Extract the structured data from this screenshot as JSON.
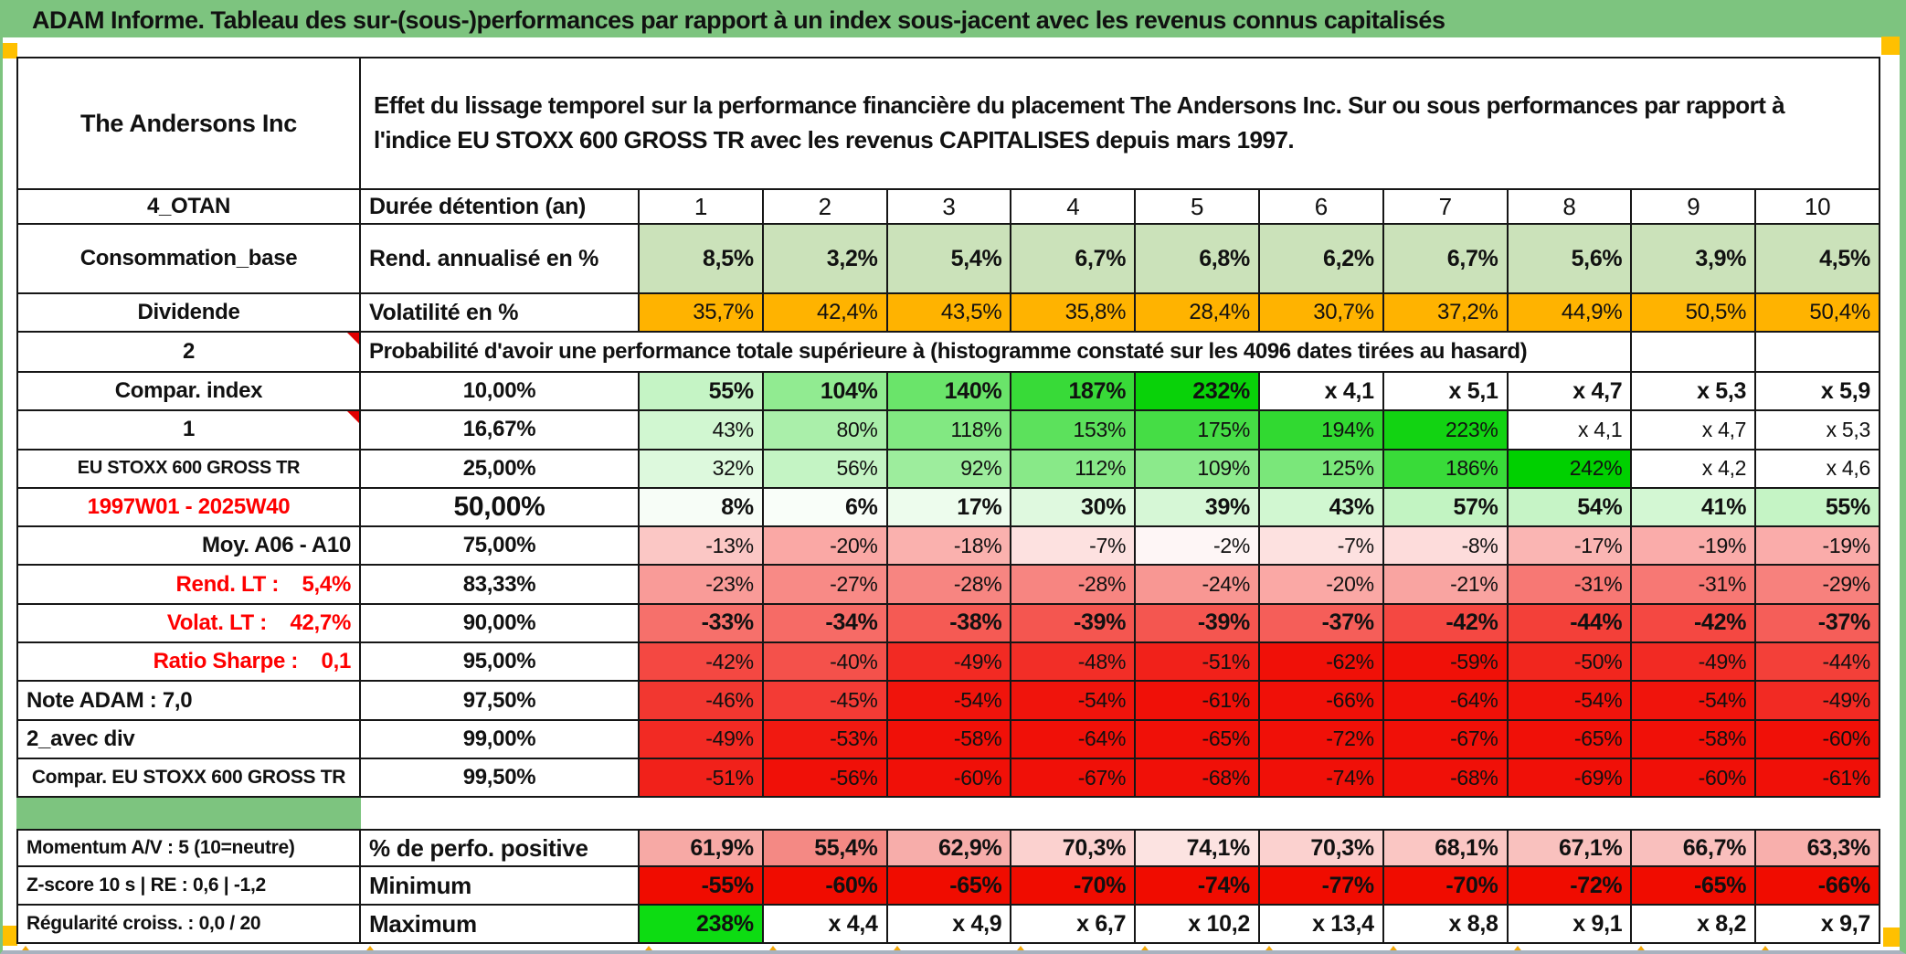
{
  "title": "ADAM Informe. Tableau des sur-(sous-)performances par rapport à un index sous-jacent avec les revenus connus capitalisés",
  "header": {
    "instrument": "The Andersons Inc",
    "description": "Effet du lissage temporel sur la performance financière du placement The Andersons Inc. Sur ou sous performances par rapport à l'indice EU STOXX 600 GROSS TR avec les revenus CAPITALISES depuis mars 1997."
  },
  "top_section": [
    {
      "label": "4_OTAN",
      "metric": "Durée détention (an)",
      "type": "header",
      "values": [
        "1",
        "2",
        "3",
        "4",
        "5",
        "6",
        "7",
        "8",
        "9",
        "10"
      ]
    },
    {
      "label": "Consommation_base",
      "metric": "Rend. annualisé en %",
      "type": "rend",
      "values": [
        "8,5%",
        "3,2%",
        "5,4%",
        "6,7%",
        "6,8%",
        "6,2%",
        "6,7%",
        "5,6%",
        "3,9%",
        "4,5%"
      ]
    },
    {
      "label": "Dividende",
      "metric": "Volatilité en %",
      "type": "vol",
      "values": [
        "35,7%",
        "42,4%",
        "43,5%",
        "35,8%",
        "28,4%",
        "30,7%",
        "37,2%",
        "44,9%",
        "50,5%",
        "50,4%"
      ]
    }
  ],
  "banner": {
    "corner": "2",
    "text": "Probabilité d'avoir une performance totale supérieure à (histogramme constaté sur les 4096 dates tirées au hasard)"
  },
  "probability_rows": [
    {
      "label": "Compar. index",
      "label_style": "sage",
      "pct": "10,00%",
      "pct_style": "orange",
      "emph": true,
      "values": [
        "55%",
        "104%",
        "140%",
        "187%",
        "232%",
        "x 4,1",
        "x 5,1",
        "x 4,7",
        "x 5,3",
        "x 5,9"
      ]
    },
    {
      "label": "1",
      "label_style": "bright",
      "pct": "16,67%",
      "pct_style": "white",
      "values": [
        "43%",
        "80%",
        "118%",
        "153%",
        "175%",
        "194%",
        "223%",
        "x 4,1",
        "x 4,7",
        "x 5,3"
      ]
    },
    {
      "label": "EU STOXX 600 GROSS TR",
      "label_style": "sage-sm",
      "pct": "25,00%",
      "pct_style": "white",
      "values": [
        "32%",
        "56%",
        "92%",
        "112%",
        "109%",
        "125%",
        "186%",
        "242%",
        "x 4,2",
        "x 4,6"
      ]
    },
    {
      "label": "1997W01 - 2025W40",
      "label_style": "red-center",
      "pct": "50,00%",
      "pct_style": "sage-big",
      "emph": true,
      "values": [
        "8%",
        "6%",
        "17%",
        "30%",
        "39%",
        "43%",
        "57%",
        "54%",
        "41%",
        "55%"
      ]
    },
    {
      "label": "Moy. A06 - A10",
      "label_style": "yellow-right",
      "pct": "75,00%",
      "pct_style": "white",
      "values": [
        "-13%",
        "-20%",
        "-18%",
        "-7%",
        "-2%",
        "-7%",
        "-8%",
        "-17%",
        "-19%",
        "-19%"
      ]
    },
    {
      "label": "Rend. LT :    5,4%",
      "label_style": "red-right",
      "pct": "83,33%",
      "pct_style": "white",
      "values": [
        "-23%",
        "-27%",
        "-28%",
        "-28%",
        "-24%",
        "-20%",
        "-21%",
        "-31%",
        "-31%",
        "-29%"
      ]
    },
    {
      "label": "Volat. LT :    42,7%",
      "label_style": "red-right",
      "pct": "90,00%",
      "pct_style": "orange",
      "emph": true,
      "values": [
        "-33%",
        "-34%",
        "-38%",
        "-39%",
        "-39%",
        "-37%",
        "-42%",
        "-44%",
        "-42%",
        "-37%"
      ]
    },
    {
      "label": "Ratio Sharpe :    0,1",
      "label_style": "red-right",
      "pct": "95,00%",
      "pct_style": "white",
      "values": [
        "-42%",
        "-40%",
        "-49%",
        "-48%",
        "-51%",
        "-62%",
        "-59%",
        "-50%",
        "-49%",
        "-44%"
      ]
    },
    {
      "label": "Note ADAM : 7,0",
      "label_style": "yellow-left",
      "pct": "97,50%",
      "pct_style": "white",
      "values": [
        "-46%",
        "-45%",
        "-54%",
        "-54%",
        "-61%",
        "-66%",
        "-64%",
        "-54%",
        "-54%",
        "-49%"
      ]
    },
    {
      "label": "2_avec div",
      "label_style": "yellow-left",
      "pct": "99,00%",
      "pct_style": "white",
      "values": [
        "-49%",
        "-53%",
        "-58%",
        "-64%",
        "-65%",
        "-72%",
        "-67%",
        "-65%",
        "-58%",
        "-60%"
      ]
    },
    {
      "label": "Compar. EU STOXX 600 GROSS TR",
      "label_style": "white-center",
      "pct": "99,50%",
      "pct_style": "white",
      "values": [
        "-51%",
        "-56%",
        "-60%",
        "-67%",
        "-68%",
        "-74%",
        "-68%",
        "-69%",
        "-60%",
        "-61%"
      ]
    }
  ],
  "bottom_rows": [
    {
      "label": "Momentum A/V : 5 (10=neutre)",
      "metric": "% de perfo. positive",
      "scale": "inv_red",
      "values": [
        "61,9%",
        "55,4%",
        "62,9%",
        "70,3%",
        "74,1%",
        "70,3%",
        "68,1%",
        "67,1%",
        "66,7%",
        "63,3%"
      ]
    },
    {
      "label": "Z-score 10 s | RE : 0,6 | -1,2",
      "metric": "Minimum",
      "scale": "flat_red",
      "values": [
        "-55%",
        "-60%",
        "-65%",
        "-70%",
        "-74%",
        "-77%",
        "-70%",
        "-72%",
        "-65%",
        "-66%"
      ]
    },
    {
      "label": "Régularité croiss. : 0,0 / 20",
      "metric": "Maximum",
      "scale": "max",
      "values": [
        "238%",
        "x 4,4",
        "x 4,9",
        "x 6,7",
        "x 10,2",
        "x 13,4",
        "x 8,8",
        "x 9,1",
        "x 8,2",
        "x 9,7"
      ]
    }
  ],
  "colors": {
    "header_green": "#7dc47f",
    "bright_green": "#00e00a",
    "sage_green": "#a2c285",
    "yellow": "#ffff00",
    "orange": "#ffb300",
    "flat_red": "#f00c00",
    "max_green": "#0ddc12",
    "red_text": "#fe0000",
    "gray_label": "#efefef",
    "light_green_rend": "#cbe2ba",
    "marker_orange": "#ffc000"
  }
}
